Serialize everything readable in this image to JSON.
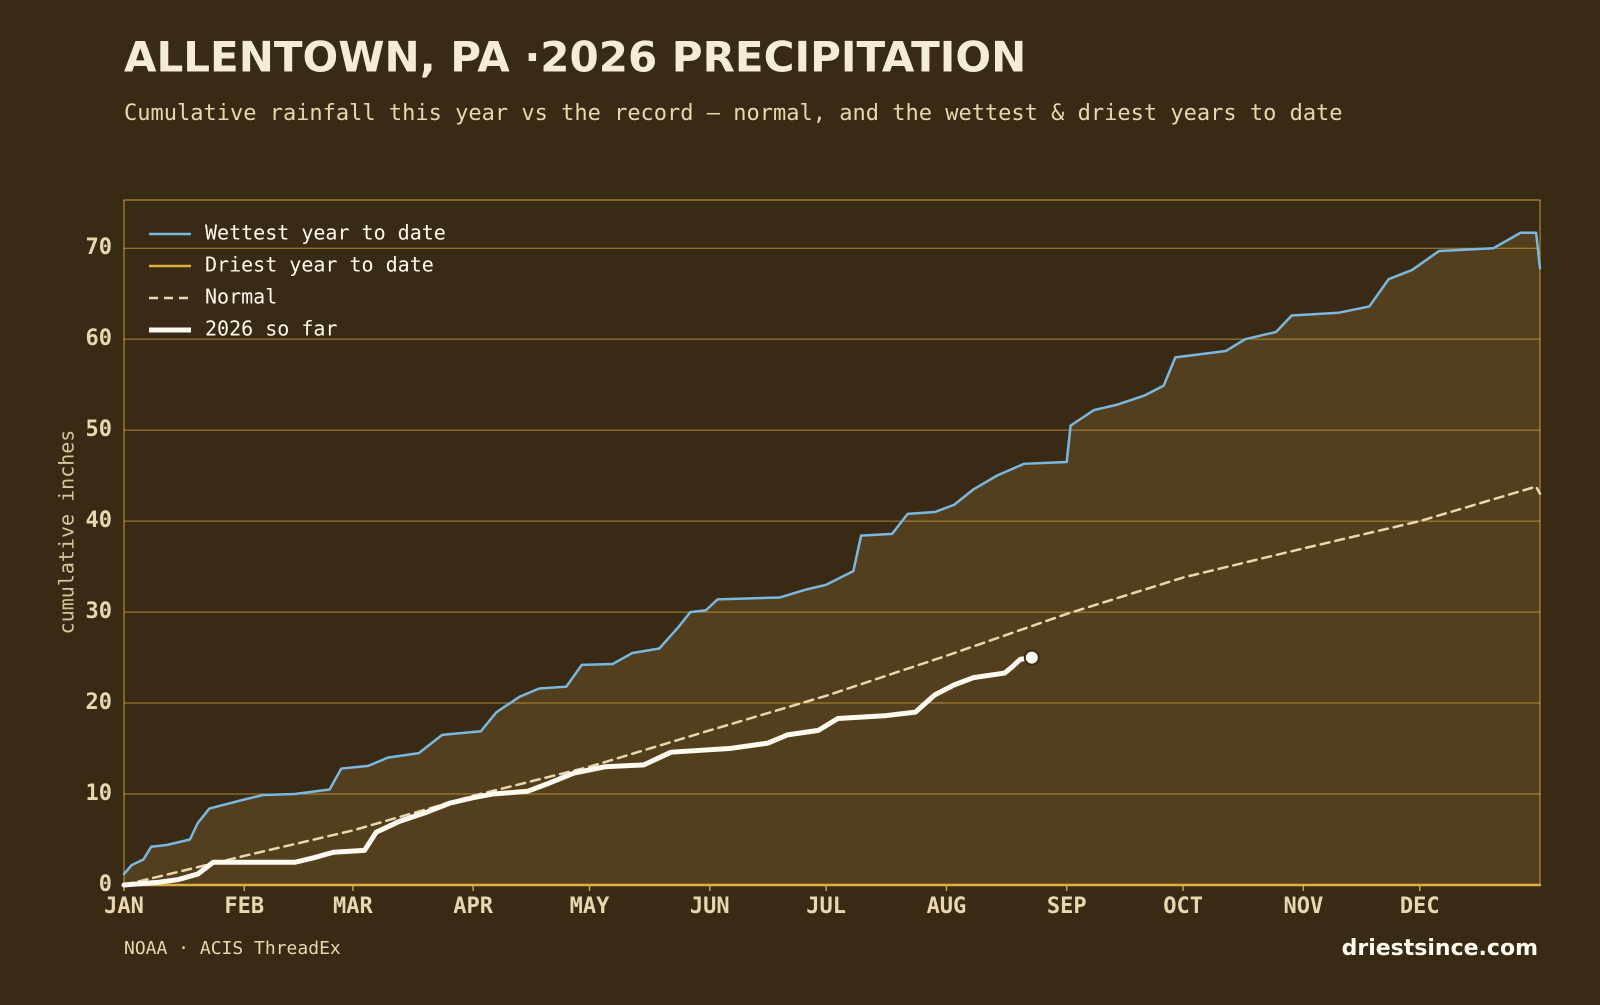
{
  "chart_data": {
    "type": "line",
    "title": "ALLENTOWN, PA ·2026 PRECIPITATION",
    "subtitle": "Cumulative rainfall this year vs the record — normal, and the wettest & driest years to date",
    "y_label": "cumulative inches",
    "source": "NOAA · ACIS ThreadEx",
    "site": "driestsince.com",
    "xlim": [
      1,
      366
    ],
    "xticks": [
      {
        "value": 1,
        "label": "JAN"
      },
      {
        "value": 32,
        "label": "FEB"
      },
      {
        "value": 60,
        "label": "MAR"
      },
      {
        "value": 91,
        "label": "APR"
      },
      {
        "value": 121,
        "label": "MAY"
      },
      {
        "value": 152,
        "label": "JUN"
      },
      {
        "value": 182,
        "label": "JUL"
      },
      {
        "value": 213,
        "label": "AUG"
      },
      {
        "value": 244,
        "label": "SEP"
      },
      {
        "value": 274,
        "label": "OCT"
      },
      {
        "value": 305,
        "label": "NOV"
      },
      {
        "value": 335,
        "label": "DEC"
      }
    ],
    "ylim": [
      0,
      75.3
    ],
    "yticks": [
      0,
      10,
      20,
      30,
      40,
      50,
      60,
      70
    ],
    "grid": true,
    "legend": "upper left",
    "series": [
      {
        "name": "Wettest year to date",
        "color": "#7ab8e0",
        "line_style": "solid",
        "line_width": 2.5,
        "x": [
          1,
          3,
          6,
          8,
          12,
          18,
          20,
          23,
          32,
          37,
          45,
          54,
          57,
          64,
          69,
          77,
          83,
          93,
          97,
          103,
          108,
          115,
          119,
          127,
          132,
          139,
          144,
          147,
          151,
          154,
          170,
          177,
          182,
          189,
          191,
          199,
          203,
          210,
          215,
          220,
          226,
          233,
          244,
          245,
          251,
          257,
          264,
          269,
          272,
          285,
          290,
          298,
          302,
          314,
          322,
          327,
          333,
          340,
          354,
          361,
          365,
          366
        ],
        "values": [
          1.2,
          2.2,
          2.8,
          4.2,
          4.4,
          5,
          6.8,
          8.4,
          9.4,
          9.9,
          10,
          10.5,
          12.8,
          13.1,
          14,
          14.5,
          16.5,
          16.9,
          19,
          20.7,
          21.6,
          21.8,
          24.2,
          24.3,
          25.5,
          26,
          28.4,
          30,
          30.2,
          31.4,
          31.6,
          32.5,
          33,
          34.5,
          38.4,
          38.6,
          40.8,
          41,
          41.8,
          43.5,
          45,
          46.3,
          46.5,
          50.5,
          52.2,
          52.8,
          53.8,
          54.9,
          58,
          58.7,
          60,
          60.8,
          62.6,
          62.9,
          63.6,
          66.6,
          67.6,
          69.7,
          70,
          71.7,
          71.7,
          67.8
        ]
      },
      {
        "name": "Driest year to date",
        "color": "#e0b040",
        "line_style": "solid",
        "line_width": 2.5,
        "x": [
          1,
          366
        ],
        "values": [
          0,
          0
        ]
      },
      {
        "name": "Normal",
        "color": "#e8d7b0",
        "line_style": "dashed",
        "line_width": 2.5,
        "x": [
          1,
          32,
          60,
          91,
          121,
          152,
          182,
          213,
          244,
          274,
          305,
          335,
          365,
          366
        ],
        "values": [
          0,
          3.2,
          6,
          9.8,
          13,
          17,
          20.8,
          25.2,
          29.8,
          33.8,
          37,
          40,
          43.8,
          43
        ]
      },
      {
        "name": "2026 so far",
        "color": "#fffaf0",
        "line_style": "solid",
        "line_width": 5,
        "x": [
          1,
          10,
          15,
          20,
          24,
          45,
          50,
          55,
          63,
          66,
          72,
          79,
          85,
          91,
          96,
          105,
          110,
          117,
          125,
          135,
          142,
          157,
          167,
          172,
          180,
          185,
          197,
          205,
          210,
          215,
          220,
          228,
          230,
          232,
          235
        ],
        "values": [
          0,
          0.3,
          0.6,
          1.2,
          2.5,
          2.5,
          3,
          3.6,
          3.8,
          5.8,
          7,
          8,
          9,
          9.6,
          10,
          10.3,
          11.1,
          12.3,
          13,
          13.2,
          14.6,
          15,
          15.6,
          16.5,
          17,
          18.3,
          18.6,
          19,
          20.9,
          22,
          22.8,
          23.3,
          24,
          24.8,
          25
        ]
      }
    ]
  }
}
